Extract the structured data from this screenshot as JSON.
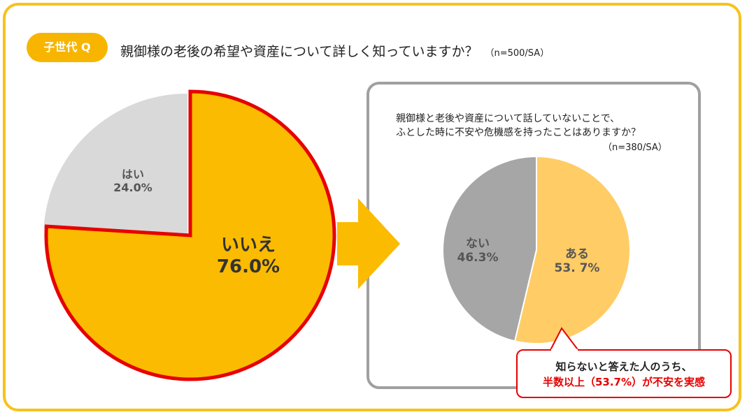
{
  "badge": "子世代 Q",
  "question": "親御様の老後の希望や資産について詳しく知っていますか？",
  "question_n": "（n=500/SA）",
  "sub_question": {
    "line1": "親御様と老後や資産について話していないことで、",
    "line2": "ふとした時に不安や危機感を持ったことはありますか？",
    "n": "（n=380/SA）"
  },
  "callout": {
    "line1": "知らないと答えた人のうち、",
    "line2": "半数以上（53.7%）が不安を実感"
  },
  "colors": {
    "frame": "#f7c21c",
    "main_no": "#fbbb00",
    "main_yes": "#d9d9d9",
    "highlight_border": "#e60000",
    "sub_yes": "#ffcc66",
    "sub_no": "#a6a6a6",
    "arrow": "#fbbb00"
  },
  "chart_data": [
    {
      "type": "pie",
      "title": "親御様の老後の希望や資産について詳しく知っていますか？",
      "slices": [
        {
          "label": "いいえ",
          "value": 76.0,
          "display": "76.0%",
          "color": "#fbbb00",
          "highlight": true
        },
        {
          "label": "はい",
          "value": 24.0,
          "display": "24.0%",
          "color": "#d9d9d9"
        }
      ]
    },
    {
      "type": "pie",
      "title": "親御様と老後や資産について話していないことで、ふとした時に不安や危機感を持ったことはありますか？",
      "slices": [
        {
          "label": "ある",
          "value": 53.7,
          "display": "53. 7%",
          "color": "#ffcc66"
        },
        {
          "label": "ない",
          "value": 46.3,
          "display": "46.3%",
          "color": "#a6a6a6"
        }
      ]
    }
  ]
}
